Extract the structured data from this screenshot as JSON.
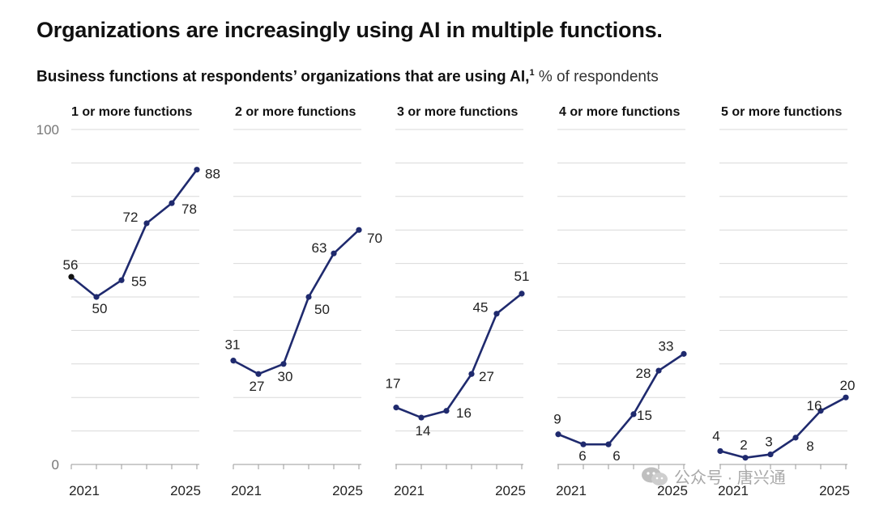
{
  "title": "Organizations are increasingly using AI in multiple functions.",
  "subtitle": {
    "bold": "Business functions at respondents’ organizations that are using AI,",
    "footnote": "1",
    "unit": "% of respondents"
  },
  "watermark": "公众号 · 唐兴通",
  "chart_data": {
    "type": "line",
    "title": "Business functions at respondents’ organizations that are using AI",
    "ylabel": "% of respondents",
    "ylim": [
      0,
      100
    ],
    "y_ticks": [
      "0",
      "100"
    ],
    "gridlines": [
      0,
      10,
      20,
      30,
      40,
      50,
      60,
      70,
      80,
      90,
      100
    ],
    "x_tick_labels": [
      "2021",
      "2025"
    ],
    "color": "#1f2a6e",
    "panels": [
      {
        "name": "1 or more functions",
        "values": [
          56,
          50,
          55,
          72,
          78,
          88
        ],
        "labels": [
          "56",
          "50",
          "55",
          "72",
          "78",
          "88"
        ]
      },
      {
        "name": "2 or more functions",
        "values": [
          31,
          27,
          30,
          50,
          63,
          70
        ],
        "labels": [
          "31",
          "27",
          "30",
          "50",
          "63",
          "70"
        ]
      },
      {
        "name": "3 or more functions",
        "values": [
          17,
          14,
          16,
          27,
          45,
          51
        ],
        "labels": [
          "17",
          "14",
          "16",
          "27",
          "45",
          "51"
        ]
      },
      {
        "name": "4 or more functions",
        "values": [
          9,
          6,
          6,
          15,
          28,
          33
        ],
        "labels": [
          "9",
          "6",
          "6",
          "15",
          "28",
          "33"
        ]
      },
      {
        "name": "5 or more functions",
        "values": [
          4,
          2,
          3,
          8,
          16,
          20
        ],
        "labels": [
          "4",
          "2",
          "3",
          "8",
          "16",
          "20"
        ]
      }
    ]
  }
}
